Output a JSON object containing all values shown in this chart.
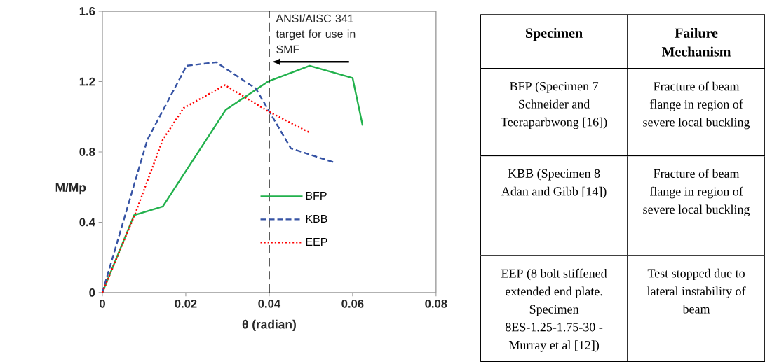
{
  "chart_data": [
    {
      "type": "line",
      "xlabel": "θ (radian)",
      "ylabel": "M/Mp",
      "xlim": [
        0,
        0.08
      ],
      "ylim": [
        0,
        1.6
      ],
      "xticks": [
        0,
        0.02,
        0.04,
        0.06,
        0.08
      ],
      "yticks": [
        0,
        0.4,
        0.8,
        1.2,
        1.6
      ],
      "legend": "right",
      "series": [
        {
          "name": "BFP",
          "color": "#22b14c",
          "line_style": "solid",
          "x": [
            0,
            0.0076,
            0.0145,
            0.0296,
            0.0397,
            0.0497,
            0.06,
            0.0624
          ],
          "values": [
            0,
            0.44,
            0.49,
            1.04,
            1.2,
            1.29,
            1.22,
            0.95
          ]
        },
        {
          "name": "KBB",
          "color": "#3653a4",
          "line_style": "dashed",
          "x": [
            0,
            0.0108,
            0.0202,
            0.0273,
            0.0368,
            0.0452,
            0.0556
          ],
          "values": [
            0,
            0.87,
            1.29,
            1.31,
            1.16,
            0.82,
            0.74
          ]
        },
        {
          "name": "EEP",
          "color": "#ff0000",
          "line_style": "dotted",
          "x": [
            0,
            0.0079,
            0.0145,
            0.0195,
            0.0294,
            0.0398,
            0.0497
          ],
          "values": [
            0,
            0.45,
            0.87,
            1.05,
            1.18,
            1.03,
            0.91
          ]
        }
      ],
      "ref_lines": [
        {
          "axis": "x",
          "value": 0.04,
          "label": "ANSI/AISC 341 target for use in SMF",
          "color": "#000000",
          "line_style": "dashed"
        }
      ]
    },
    {
      "type": "other",
      "annotations": [
        "Specimen",
        "Failure Mechanism",
        "BFP (Specimen 7 Schneider and Teeraparbwong [16])",
        "Fracture of beam flange in region of severe local buckling",
        "KBB (Specimen 8 Adan and Gibb [14])",
        "Fracture of beam flange in region of severe local buckling",
        "EEP (8 bolt stiffened extended end plate. Specimen 8ES-1.25-1.75-30 - Murray et al [12])",
        "Test stopped due to lateral instability of beam"
      ]
    }
  ]
}
